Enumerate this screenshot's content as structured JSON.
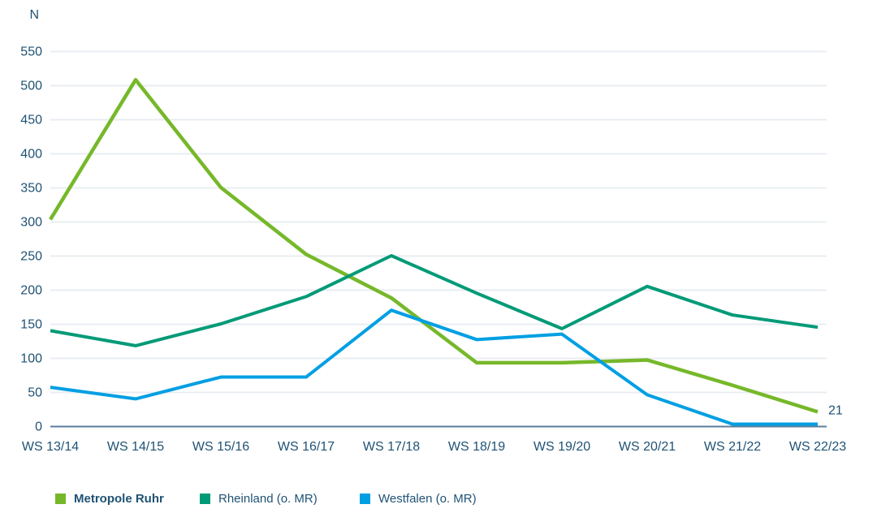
{
  "chart_data": {
    "type": "line",
    "title": "",
    "ylabel": "N",
    "xlabel": "",
    "categories": [
      "WS 13/14",
      "WS 14/15",
      "WS 15/16",
      "WS 16/17",
      "WS 17/18",
      "WS 18/19",
      "WS 19/20",
      "WS 20/21",
      "WS 21/22",
      "WS 22/23"
    ],
    "series": [
      {
        "name": "Metropole Ruhr",
        "color": "#76B82A",
        "bold_legend": true,
        "values": [
          303,
          508,
          350,
          252,
          188,
          93,
          93,
          97,
          60,
          21
        ]
      },
      {
        "name": "Rheinland (o. MR)",
        "color": "#009A77",
        "bold_legend": false,
        "values": [
          140,
          118,
          150,
          190,
          250,
          195,
          143,
          205,
          163,
          145
        ]
      },
      {
        "name": "Westfalen (o. MR)",
        "color": "#009FE3",
        "bold_legend": false,
        "values": [
          57,
          40,
          72,
          72,
          170,
          127,
          135,
          46,
          3,
          3
        ]
      }
    ],
    "y_ticks": [
      550,
      500,
      450,
      400,
      350,
      300,
      250,
      200,
      150,
      100,
      50,
      0
    ],
    "ylim": [
      0,
      550
    ],
    "grid": true,
    "legend_position": "bottom",
    "end_label": {
      "series_index": 0,
      "text": "21"
    }
  },
  "colors": {
    "axis_text": "#1F5274",
    "gridline": "#E9EDF2",
    "zero_axis": "#5C7D9F",
    "background": "#FFFFFF"
  }
}
